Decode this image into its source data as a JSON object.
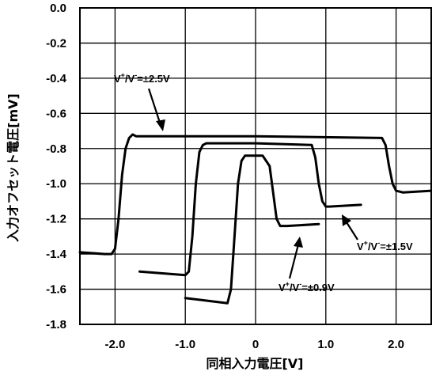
{
  "chart_data": {
    "type": "line",
    "xlabel": "同相入力電圧[V]",
    "ylabel": "入力オフセット電圧[mV]",
    "xlim": [
      -2.5,
      2.5
    ],
    "ylim": [
      -1.8,
      0.0
    ],
    "x_ticks": [
      "-2.0",
      "-1.0",
      "0",
      "1.0",
      "2.0"
    ],
    "x_tick_values": [
      -2.0,
      -1.0,
      0.0,
      1.0,
      2.0
    ],
    "y_ticks": [
      "0.0",
      "-0.2",
      "-0.4",
      "-0.6",
      "-0.8",
      "-1.0",
      "-1.2",
      "-1.4",
      "-1.6",
      "-1.8"
    ],
    "y_tick_values": [
      0.0,
      -0.2,
      -0.4,
      -0.6,
      -0.8,
      -1.0,
      -1.2,
      -1.4,
      -1.6,
      -1.8
    ],
    "grid": true,
    "series": [
      {
        "name": "V+/V-=±2.5V",
        "x": [
          -2.5,
          -2.15,
          -2.05,
          -2.0,
          -1.95,
          -1.9,
          -1.85,
          -1.8,
          -1.75,
          -1.7,
          -1.6,
          0.0,
          1.8,
          1.85,
          1.9,
          1.95,
          2.0,
          2.1,
          2.5
        ],
        "y": [
          -1.39,
          -1.4,
          -1.4,
          -1.37,
          -1.2,
          -0.95,
          -0.8,
          -0.74,
          -0.72,
          -0.73,
          -0.73,
          -0.73,
          -0.74,
          -0.78,
          -0.9,
          -1.0,
          -1.04,
          -1.05,
          -1.04
        ]
      },
      {
        "name": "V+/V-=±1.5V",
        "x": [
          -1.65,
          -1.0,
          -0.95,
          -0.9,
          -0.85,
          -0.8,
          -0.75,
          -0.7,
          -0.6,
          0.0,
          0.8,
          0.85,
          0.9,
          0.95,
          1.0,
          1.05,
          1.5
        ],
        "y": [
          -1.5,
          -1.52,
          -1.5,
          -1.3,
          -1.0,
          -0.82,
          -0.78,
          -0.77,
          -0.77,
          -0.77,
          -0.78,
          -0.85,
          -1.0,
          -1.1,
          -1.13,
          -1.13,
          -1.12
        ]
      },
      {
        "name": "V+/V-=±0.9V",
        "x": [
          -1.0,
          -0.4,
          -0.35,
          -0.3,
          -0.25,
          -0.2,
          -0.15,
          -0.05,
          0.1,
          0.2,
          0.25,
          0.3,
          0.35,
          0.45,
          0.9
        ],
        "y": [
          -1.65,
          -1.68,
          -1.6,
          -1.3,
          -1.0,
          -0.87,
          -0.84,
          -0.84,
          -0.84,
          -0.9,
          -1.05,
          -1.2,
          -1.24,
          -1.24,
          -1.23
        ]
      }
    ],
    "annotations": [
      {
        "base": "V",
        "sup1": "+",
        "mid": "/V",
        "sup2": "-",
        "rest": "=±2.5V"
      },
      {
        "base": "V",
        "sup1": "+",
        "mid": "/V",
        "sup2": "-",
        "rest": "=±1.5V"
      },
      {
        "base": "V",
        "sup1": "+",
        "mid": "/V",
        "sup2": "-",
        "rest": "=±0.9V"
      }
    ]
  }
}
